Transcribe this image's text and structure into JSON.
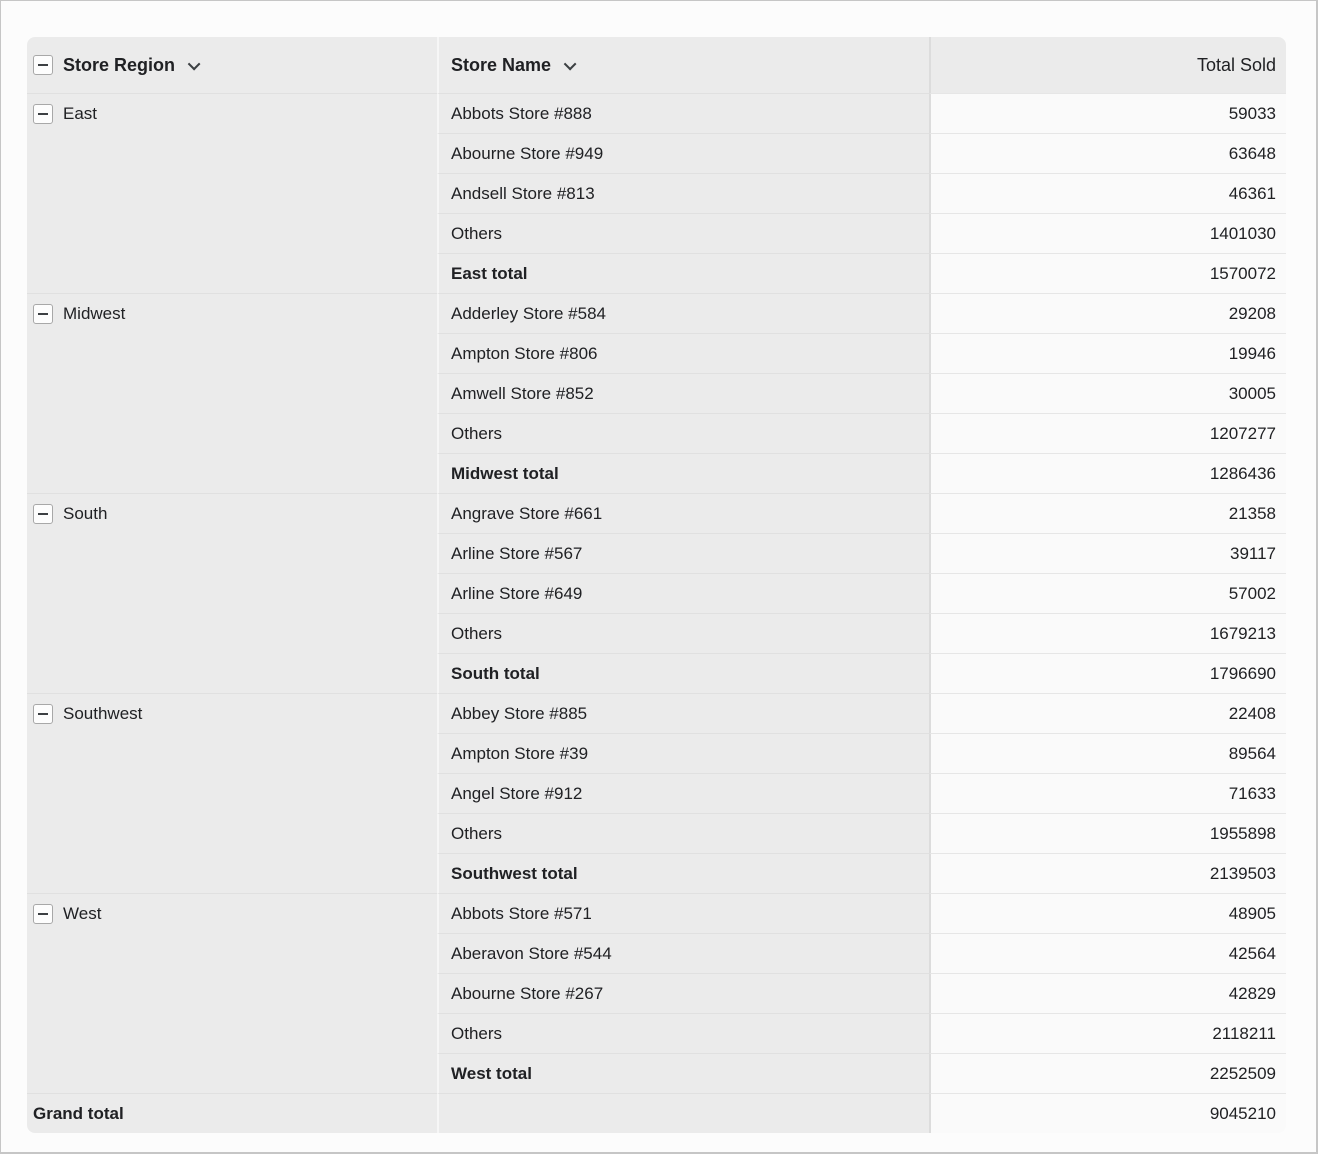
{
  "table": {
    "columns": [
      {
        "label": "Store Region"
      },
      {
        "label": "Store Name"
      },
      {
        "label": "Total Sold"
      }
    ],
    "groups": [
      {
        "region": "East",
        "rows": [
          {
            "name": "Abbots Store #888",
            "value": "59033"
          },
          {
            "name": "Abourne Store #949",
            "value": "63648"
          },
          {
            "name": "Andsell Store #813",
            "value": "46361"
          },
          {
            "name": "Others",
            "value": "1401030"
          },
          {
            "name": "East total",
            "value": "1570072"
          }
        ]
      },
      {
        "region": "Midwest",
        "rows": [
          {
            "name": "Adderley Store #584",
            "value": "29208"
          },
          {
            "name": "Ampton Store #806",
            "value": "19946"
          },
          {
            "name": "Amwell Store #852",
            "value": "30005"
          },
          {
            "name": "Others",
            "value": "1207277"
          },
          {
            "name": "Midwest total",
            "value": "1286436"
          }
        ]
      },
      {
        "region": "South",
        "rows": [
          {
            "name": "Angrave Store #661",
            "value": "21358"
          },
          {
            "name": "Arline Store #567",
            "value": "39117"
          },
          {
            "name": "Arline Store #649",
            "value": "57002"
          },
          {
            "name": "Others",
            "value": "1679213"
          },
          {
            "name": "South total",
            "value": "1796690"
          }
        ]
      },
      {
        "region": "Southwest",
        "rows": [
          {
            "name": "Abbey Store #885",
            "value": "22408"
          },
          {
            "name": "Ampton Store #39",
            "value": "89564"
          },
          {
            "name": "Angel Store #912",
            "value": "71633"
          },
          {
            "name": "Others",
            "value": "1955898"
          },
          {
            "name": "Southwest total",
            "value": "2139503"
          }
        ]
      },
      {
        "region": "West",
        "rows": [
          {
            "name": "Abbots Store #571",
            "value": "48905"
          },
          {
            "name": "Aberavon Store #544",
            "value": "42564"
          },
          {
            "name": "Abourne Store #267",
            "value": "42829"
          },
          {
            "name": "Others",
            "value": "2118211"
          },
          {
            "name": "West total",
            "value": "2252509"
          }
        ]
      }
    ],
    "grand_total": {
      "label": "Grand total",
      "value": "9045210"
    }
  },
  "colors": {
    "header_bg": "#ebebeb",
    "row_bg": "#ebebeb",
    "value_bg": "#fafafa",
    "text": "#202124"
  }
}
